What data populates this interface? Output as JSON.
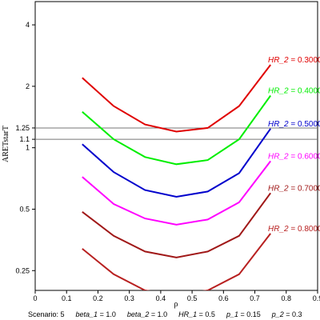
{
  "chart_data": {
    "type": "line",
    "ylabel": "ARETstarT",
    "xlabel": "ρ",
    "y_scale": "log",
    "xlim": [
      0,
      0.9
    ],
    "ylim": [
      0.2,
      5.2
    ],
    "x_ticks": [
      0,
      0.1,
      0.2,
      0.3,
      0.4,
      0.5,
      0.6,
      0.7,
      0.8,
      0.9
    ],
    "x_tick_labels": [
      "0",
      "0.1",
      "0.2",
      "0.3",
      "0.4",
      "0.5",
      "0.6",
      "0.7",
      "0.8",
      "0.9"
    ],
    "y_ticks": [
      0.25,
      0.5,
      1,
      1.1,
      1.25,
      2,
      4
    ],
    "y_tick_labels": [
      "0.25",
      "0.5",
      "1",
      "1.1",
      "1.25",
      "2",
      "4"
    ],
    "reference_lines_y": [
      1.1,
      1.25
    ],
    "x": [
      0.15,
      0.25,
      0.35,
      0.45,
      0.55,
      0.65,
      0.75
    ],
    "series": [
      {
        "label_name": "HR_2",
        "label_value": "0.3000",
        "color": "#e00000",
        "values": [
          2.2,
          1.6,
          1.3,
          1.2,
          1.25,
          1.6,
          2.55
        ]
      },
      {
        "label_name": "HR_2",
        "label_value": "0.4000",
        "color": "#00ee00",
        "values": [
          1.5,
          1.1,
          0.9,
          0.83,
          0.87,
          1.1,
          1.8
        ]
      },
      {
        "label_name": "HR_2",
        "label_value": "0.5000",
        "color": "#0000cc",
        "values": [
          1.04,
          0.76,
          0.62,
          0.575,
          0.61,
          0.75,
          1.24
        ]
      },
      {
        "label_name": "HR_2",
        "label_value": "0.6000",
        "color": "#ff00ff",
        "values": [
          0.72,
          0.53,
          0.45,
          0.42,
          0.445,
          0.54,
          0.86
        ]
      },
      {
        "label_name": "HR_2",
        "label_value": "0.7000",
        "color": "#a01818",
        "values": [
          0.485,
          0.37,
          0.31,
          0.29,
          0.31,
          0.37,
          0.6
        ]
      },
      {
        "label_name": "HR_2",
        "label_value": "0.8000",
        "color": "#b82020",
        "values": [
          0.32,
          0.24,
          0.2,
          0.19,
          0.2,
          0.24,
          0.38
        ]
      }
    ]
  },
  "footer": {
    "scenario_label": "Scenario: 5",
    "params": [
      {
        "name": "beta_1",
        "value": "1.0"
      },
      {
        "name": "beta_2",
        "value": "1.0"
      },
      {
        "name": "HR_1",
        "value": "0.5"
      },
      {
        "name": "p_1",
        "value": "0.15"
      },
      {
        "name": "p_2",
        "value": "0.3"
      }
    ]
  }
}
